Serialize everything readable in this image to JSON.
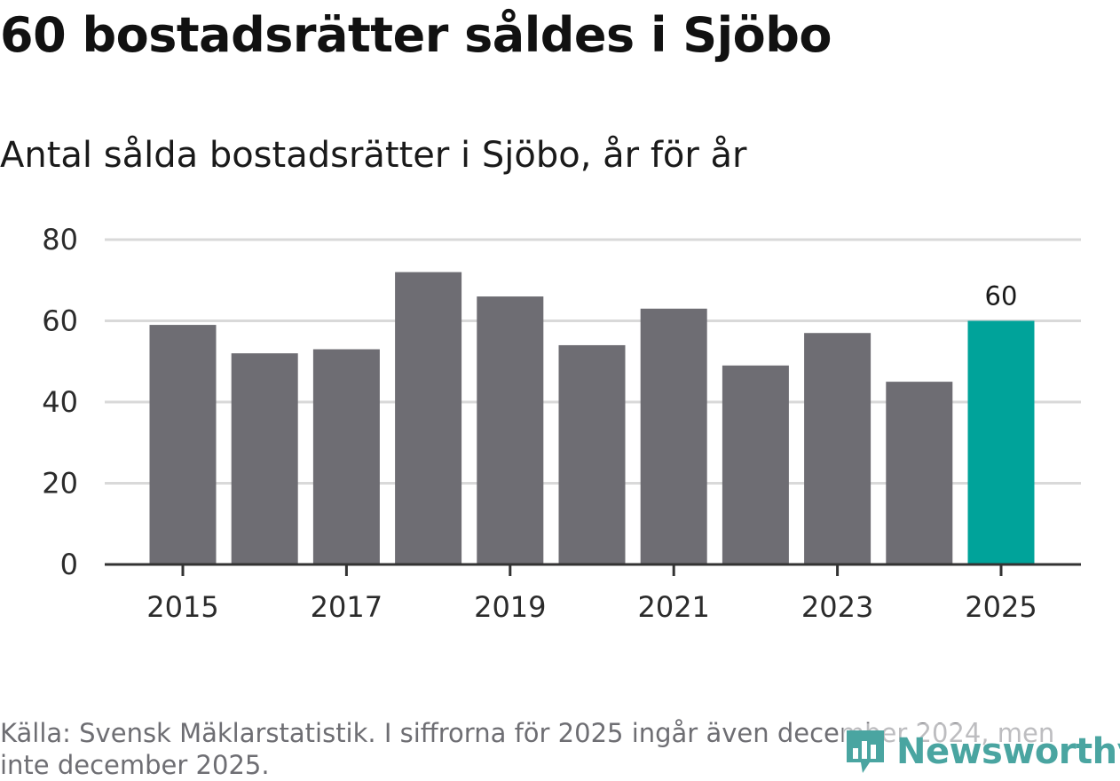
{
  "title": "60 bostadsrätter såldes i Sjöbo",
  "subtitle": "Antal sålda bostadsrätter i Sjöbo, år för år",
  "source": "Källa: Svensk Mäklarstatistik. I siffrorna för 2025 ingår även december 2024, men inte december 2025.",
  "logo": {
    "text": "Newsworthy",
    "icon": "newsworthy-logo-icon"
  },
  "colors": {
    "bar": "#6e6d73",
    "highlight": "#00a39a",
    "grid": "#d9d9d9",
    "axis": "#333333"
  },
  "chart_data": {
    "type": "bar",
    "title": "Antal sålda bostadsrätter i Sjöbo, år för år",
    "categories": [
      "2015",
      "2016",
      "2017",
      "2018",
      "2019",
      "2020",
      "2021",
      "2022",
      "2023",
      "2024",
      "2025"
    ],
    "values": [
      59,
      52,
      53,
      72,
      66,
      54,
      63,
      49,
      57,
      45,
      60
    ],
    "highlight_index": 10,
    "x_tick_labels": [
      "2015",
      "2017",
      "2019",
      "2021",
      "2023",
      "2025"
    ],
    "y_ticks": [
      0,
      20,
      40,
      60,
      80
    ],
    "ylim": [
      0,
      80
    ],
    "data_labels": [
      {
        "category": "2025",
        "text": "60"
      }
    ],
    "xlabel": "",
    "ylabel": "",
    "grid": true,
    "legend": "none"
  }
}
